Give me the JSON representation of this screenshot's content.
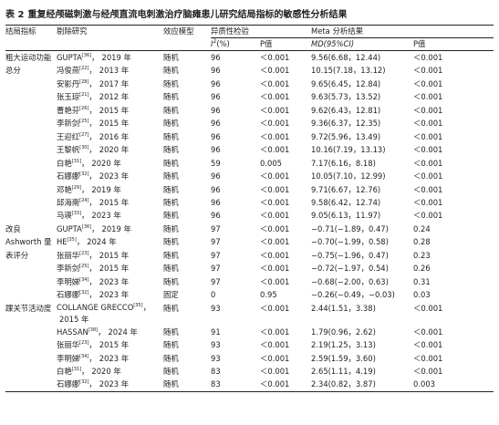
{
  "title": {
    "label": "表 2",
    "text": "重复经颅磁刺激与经颅直流电刺激治疗脑瘫患儿研究结局指标的敏感性分析结果"
  },
  "headers": {
    "outcome": "结局指标",
    "study": "剔除研究",
    "model": "效应模型",
    "hetero": "异质性检验",
    "i2_pre": "I",
    "i2_sup": "2",
    "i2_post": "(%)",
    "p": "P值",
    "meta": "Meta 分析结果",
    "md": "MD(95%CI)",
    "p2": "P值"
  },
  "groups": [
    {
      "indicator": "粗大运动功能总分",
      "rows": [
        {
          "name": "GUPTA",
          "ref": "[36]",
          "year": "2019 年",
          "model": "随机",
          "i2": "96",
          "p": "＜0.001",
          "md": "9.56(6.68，12.44)",
          "p2": "＜0.001"
        },
        {
          "name": "冯俊燕",
          "ref": "[22]",
          "year": "2013 年",
          "model": "随机",
          "i2": "96",
          "p": "＜0.001",
          "md": "10.15(7.18，13.12)",
          "p2": "＜0.001"
        },
        {
          "name": "安影丹",
          "ref": "[28]",
          "year": "2017 年",
          "model": "随机",
          "i2": "96",
          "p": "＜0.001",
          "md": "9.65(6.45，12.84)",
          "p2": "＜0.001"
        },
        {
          "name": "张玉琼",
          "ref": "[21]",
          "year": "2012 年",
          "model": "随机",
          "i2": "96",
          "p": "＜0.001",
          "md": "9.63(5.73，13.52)",
          "p2": "＜0.001"
        },
        {
          "name": "曹艳芬",
          "ref": "[26]",
          "year": "2015 年",
          "model": "随机",
          "i2": "96",
          "p": "＜0.001",
          "md": "9.62(6.43，12.81)",
          "p2": "＜0.001"
        },
        {
          "name": "李新剑",
          "ref": "[25]",
          "year": "2015 年",
          "model": "随机",
          "i2": "96",
          "p": "＜0.001",
          "md": "9.36(6.37，12.35)",
          "p2": "＜0.001"
        },
        {
          "name": "王迎红",
          "ref": "[27]",
          "year": "2016 年",
          "model": "随机",
          "i2": "96",
          "p": "＜0.001",
          "md": "9.72(5.96，13.49)",
          "p2": "＜0.001"
        },
        {
          "name": "王黎帆",
          "ref": "[30]",
          "year": "2020 年",
          "model": "随机",
          "i2": "96",
          "p": "＜0.001",
          "md": "10.16(7.19，13.13)",
          "p2": "＜0.001"
        },
        {
          "name": "白艳",
          "ref": "[31]",
          "year": "2020 年",
          "model": "随机",
          "i2": "59",
          "p": "0.005",
          "md": "7.17(6.16，8.18)",
          "p2": "＜0.001"
        },
        {
          "name": "石娜娜",
          "ref": "[32]",
          "year": "2023 年",
          "model": "随机",
          "i2": "96",
          "p": "＜0.001",
          "md": "10.05(7.10，12.99)",
          "p2": "＜0.001"
        },
        {
          "name": "邓艳",
          "ref": "[29]",
          "year": "2019 年",
          "model": "随机",
          "i2": "96",
          "p": "＜0.001",
          "md": "9.71(6.67，12.76)",
          "p2": "＜0.001"
        },
        {
          "name": "邱海南",
          "ref": "[24]",
          "year": "2015 年",
          "model": "随机",
          "i2": "96",
          "p": "＜0.001",
          "md": "9.58(6.42，12.74)",
          "p2": "＜0.001"
        },
        {
          "name": "马瑛",
          "ref": "[33]",
          "year": "2023 年",
          "model": "随机",
          "i2": "96",
          "p": "＜0.001",
          "md": "9.05(6.13，11.97)",
          "p2": "＜0.001"
        }
      ]
    },
    {
      "indicator": "改良 Ashworth 量表评分",
      "rows": [
        {
          "name": "GUPTA",
          "ref": "[36]",
          "year": "2019 年",
          "model": "随机",
          "i2": "97",
          "p": "＜0.001",
          "md": "−0.71(−1.89，0.47)",
          "p2": "0.24"
        },
        {
          "name": "HE",
          "ref": "[35]",
          "year": "2024 年",
          "model": "随机",
          "i2": "97",
          "p": "＜0.001",
          "md": "−0.70(−1.99，0.58)",
          "p2": "0.28"
        },
        {
          "name": "张丽华",
          "ref": "[23]",
          "year": "2015 年",
          "model": "随机",
          "i2": "97",
          "p": "＜0.001",
          "md": "−0.75(−1.96，0.47)",
          "p2": "0.23"
        },
        {
          "name": "李新剑",
          "ref": "[25]",
          "year": "2015 年",
          "model": "随机",
          "i2": "97",
          "p": "＜0.001",
          "md": "−0.72(−1.97，0.54)",
          "p2": "0.26"
        },
        {
          "name": "李明娣",
          "ref": "[34]",
          "year": "2023 年",
          "model": "随机",
          "i2": "97",
          "p": "＜0.001",
          "md": "−0.68(−2.00，0.63)",
          "p2": "0.31"
        },
        {
          "name": "石娜娜",
          "ref": "[32]",
          "year": "2023 年",
          "model": "固定",
          "i2": "0",
          "p": "0.95",
          "md": "−0.26(−0.49，−0.03)",
          "p2": "0.03"
        }
      ]
    },
    {
      "indicator": "踝关节活动度",
      "rows": [
        {
          "name": "COLLANGE GRECCO",
          "ref": "[35]",
          "year": "2015 年",
          "model": "随机",
          "i2": "93",
          "p": "＜0.001",
          "md": "2.44(1.51，3.38)",
          "p2": "＜0.001",
          "wrap": true
        },
        {
          "name": "HASSAN",
          "ref": "[38]",
          "year": "2024 年",
          "model": "随机",
          "i2": "91",
          "p": "＜0.001",
          "md": "1.79(0.96，2.62)",
          "p2": "＜0.001"
        },
        {
          "name": "张丽华",
          "ref": "[23]",
          "year": "2015 年",
          "model": "随机",
          "i2": "93",
          "p": "＜0.001",
          "md": "2.19(1.25，3.13)",
          "p2": "＜0.001"
        },
        {
          "name": "李明娣",
          "ref": "[34]",
          "year": "2023 年",
          "model": "随机",
          "i2": "93",
          "p": "＜0.001",
          "md": "2.59(1.59，3.60)",
          "p2": "＜0.001"
        },
        {
          "name": "白艳",
          "ref": "[31]",
          "year": "2020 年",
          "model": "随机",
          "i2": "83",
          "p": "＜0.001",
          "md": "2.65(1.11，4.19)",
          "p2": "＜0.001"
        },
        {
          "name": "石娜娜",
          "ref": "[32]",
          "year": "2023 年",
          "model": "随机",
          "i2": "83",
          "p": "＜0.001",
          "md": "2.34(0.82，3.87)",
          "p2": "0.003"
        }
      ]
    }
  ]
}
